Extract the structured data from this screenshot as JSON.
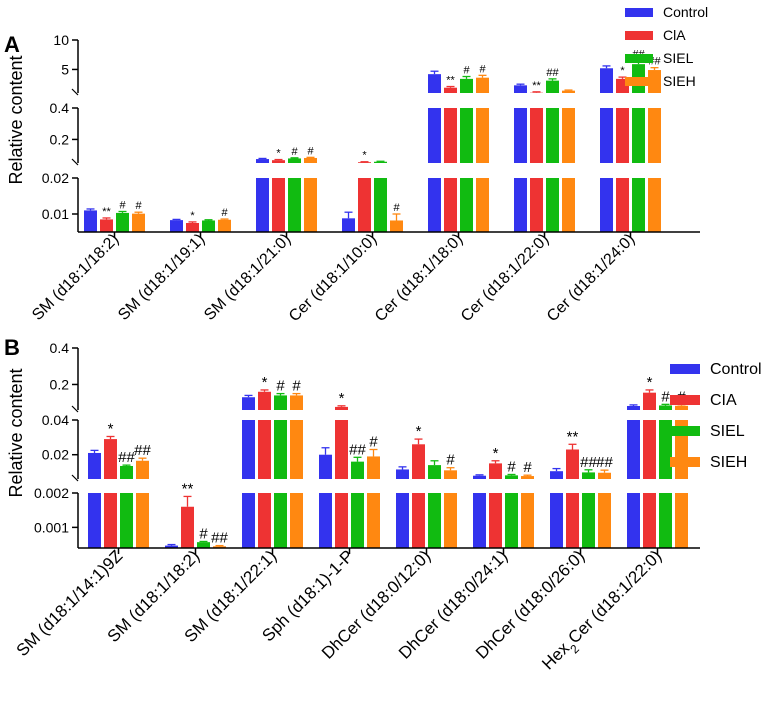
{
  "colors": {
    "Control": "#3333ee",
    "CIA": "#ee3333",
    "SIEL": "#11bb11",
    "SIEH": "#ff8811"
  },
  "chart_data": [
    {
      "type": "bar",
      "panel_label": "A",
      "ylabel": "Relative content",
      "legend": [
        "Control",
        "ClA",
        "SIEL",
        "SIEH"
      ],
      "legend_position": "top-right",
      "y_segments": [
        {
          "range": [
            0.005,
            0.02
          ],
          "ticks": [
            {
              "v": 0.01,
              "label": "0.01"
            },
            {
              "v": 0.02,
              "label": "0.02"
            }
          ]
        },
        {
          "range": [
            0.05,
            0.4
          ],
          "ticks": [
            {
              "v": 0.2,
              "label": "0.2"
            },
            {
              "v": 0.4,
              "label": "0.4"
            }
          ]
        },
        {
          "range": [
            1,
            10
          ],
          "ticks": [
            {
              "v": 5,
              "label": "5"
            },
            {
              "v": 10,
              "label": "10"
            }
          ]
        }
      ],
      "categories": [
        "SM (d18:1/18:2)",
        "SM (d18:1/19:1)",
        "SM (d18:1/21:0)",
        "Cer (d18:1/10:0)",
        "Cer (d18:1/18:0)",
        "Cer (d18:1/22:0)",
        "Cer (d18:1/24:0)"
      ],
      "series": [
        {
          "name": "Control",
          "values": [
            0.011,
            0.0083,
            0.075,
            0.0088,
            4.2,
            2.3,
            5.2
          ],
          "errors": [
            0.0004,
            0.0002,
            0.004,
            0.0017,
            0.5,
            0.2,
            0.4
          ]
        },
        {
          "name": "ClA",
          "values": [
            0.0085,
            0.0075,
            0.068,
            0.055,
            1.9,
            1.05,
            3.4
          ],
          "errors": [
            0.0004,
            0.0003,
            0.004,
            0.003,
            0.2,
            0.15,
            0.3
          ]
        },
        {
          "name": "SIEL",
          "values": [
            0.0103,
            0.0082,
            0.079,
            0.058,
            3.4,
            3.1,
            5.9
          ],
          "errors": [
            0.0004,
            0.0002,
            0.004,
            0.003,
            0.4,
            0.3,
            0.6
          ]
        },
        {
          "name": "SIEH",
          "values": [
            0.0101,
            0.0084,
            0.082,
            0.0082,
            3.6,
            1.4,
            4.9
          ],
          "errors": [
            0.0004,
            0.0002,
            0.004,
            0.0018,
            0.4,
            0.1,
            0.4
          ]
        }
      ],
      "annotations": [
        [
          "",
          "**",
          "#",
          "#"
        ],
        [
          "",
          "*",
          "",
          "#"
        ],
        [
          "",
          "*",
          "#",
          "#"
        ],
        [
          "",
          "*",
          "",
          "#"
        ],
        [
          "",
          "**",
          "#",
          "#"
        ],
        [
          "",
          "**",
          "##",
          ""
        ],
        [
          "",
          "*",
          "##",
          "##"
        ]
      ]
    },
    {
      "type": "bar",
      "panel_label": "B",
      "ylabel": "Relative content",
      "legend": [
        "Control",
        "CIA",
        "SIEL",
        "SIEH"
      ],
      "legend_position": "right",
      "y_segments": [
        {
          "range": [
            0.0004,
            0.002
          ],
          "ticks": [
            {
              "v": 0.001,
              "label": "0.001"
            },
            {
              "v": 0.002,
              "label": "0.002"
            }
          ]
        },
        {
          "range": [
            0.006,
            0.04
          ],
          "ticks": [
            {
              "v": 0.02,
              "label": "0.02"
            },
            {
              "v": 0.04,
              "label": "0.04"
            }
          ]
        },
        {
          "range": [
            0.06,
            0.4
          ],
          "ticks": [
            {
              "v": 0.2,
              "label": "0.2"
            },
            {
              "v": 0.4,
              "label": "0.4"
            }
          ]
        }
      ],
      "categories": [
        "SM (d18:1/14:1)9Z",
        "SM (d18:1/18:2)",
        "SM (d18:1/22:1)",
        "Sph (d18:1)-1-P",
        "DhCer (d18:0/12:0)",
        "DhCer (d18:0/24:1)",
        "DhCer (d18:0/26:0)",
        "Hex2Cer (d18:1/22:0)"
      ],
      "series": [
        {
          "name": "Control",
          "values": [
            0.021,
            0.00047,
            0.13,
            0.02,
            0.0115,
            0.0079,
            0.0105,
            0.082
          ],
          "errors": [
            0.0015,
            3e-05,
            0.01,
            0.004,
            0.0015,
            0.0005,
            0.0015,
            0.006
          ]
        },
        {
          "name": "CIA",
          "values": [
            0.029,
            0.0016,
            0.16,
            0.077,
            0.026,
            0.015,
            0.023,
            0.155
          ],
          "errors": [
            0.0015,
            0.0003,
            0.01,
            0.006,
            0.003,
            0.0015,
            0.003,
            0.015
          ]
        },
        {
          "name": "SIEL",
          "values": [
            0.0135,
            0.00057,
            0.14,
            0.016,
            0.014,
            0.0081,
            0.0098,
            0.085
          ],
          "errors": [
            0.0005,
            2e-05,
            0.01,
            0.0025,
            0.0025,
            0.0005,
            0.0015,
            0.006
          ]
        },
        {
          "name": "SIEH",
          "values": [
            0.0165,
            0.00045,
            0.14,
            0.019,
            0.011,
            0.0077,
            0.0096,
            0.083
          ],
          "errors": [
            0.0015,
            2e-05,
            0.01,
            0.004,
            0.0015,
            0.0005,
            0.0015,
            0.006
          ]
        }
      ],
      "annotations": [
        [
          "",
          "*",
          "##",
          "##"
        ],
        [
          "",
          "**",
          "#",
          "##"
        ],
        [
          "",
          "*",
          "#",
          "#"
        ],
        [
          "",
          "*",
          "##",
          "#"
        ],
        [
          "",
          "*",
          "",
          "#"
        ],
        [
          "",
          "*",
          "#",
          "#"
        ],
        [
          "",
          "**",
          "##",
          "##"
        ],
        [
          "",
          "*",
          "#",
          "#"
        ]
      ]
    }
  ]
}
